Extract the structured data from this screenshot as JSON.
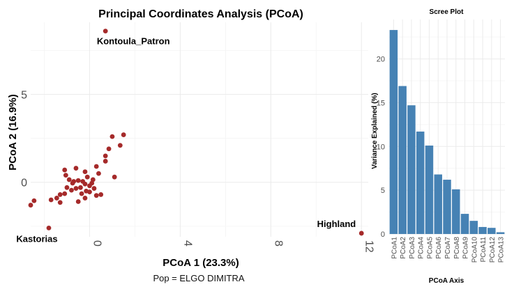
{
  "caption": "Pop = ELGO DIMITRA",
  "colors": {
    "point": "#A52A2A",
    "bar": "#4682B4",
    "grid": "#EBEBEB",
    "text": "#000000",
    "tick": "#4D4D4D"
  },
  "chart_data": [
    {
      "type": "scatter",
      "title": "Principal Coordinates Analysis (PCoA)",
      "xlabel": "PCoA 1 (23.3%)",
      "ylabel": "PCoA 2 (16.9%)",
      "xlim": [
        -2.6,
        12.3
      ],
      "ylim": [
        -3.1,
        9.1
      ],
      "xticks": [
        0,
        4,
        8,
        12
      ],
      "xtick_labels": [
        "0",
        "4",
        "8",
        "12"
      ],
      "yticks": [
        0,
        5
      ],
      "ytick_labels": [
        "0",
        "5"
      ],
      "points": [
        {
          "x": 0.7,
          "y": 8.6
        },
        {
          "x": 12.0,
          "y": -2.9
        },
        {
          "x": -1.8,
          "y": -2.6
        },
        {
          "x": 1.5,
          "y": 2.7
        },
        {
          "x": 1.0,
          "y": 2.6
        },
        {
          "x": 1.35,
          "y": 2.1
        },
        {
          "x": 0.85,
          "y": 1.9
        },
        {
          "x": 0.7,
          "y": 1.5
        },
        {
          "x": 0.7,
          "y": 1.2
        },
        {
          "x": 1.1,
          "y": 0.3
        },
        {
          "x": 0.3,
          "y": 0.9
        },
        {
          "x": 0.4,
          "y": 0.5
        },
        {
          "x": -0.2,
          "y": 0.6
        },
        {
          "x": -0.1,
          "y": 0.3
        },
        {
          "x": -0.6,
          "y": 0.8
        },
        {
          "x": -1.1,
          "y": 0.7
        },
        {
          "x": -1.05,
          "y": 0.4
        },
        {
          "x": -0.9,
          "y": 0.15
        },
        {
          "x": -0.7,
          "y": 0.05
        },
        {
          "x": -0.5,
          "y": 0.1
        },
        {
          "x": -0.3,
          "y": 0.05
        },
        {
          "x": -0.2,
          "y": -0.1
        },
        {
          "x": 0.0,
          "y": -0.2
        },
        {
          "x": 0.1,
          "y": -0.05
        },
        {
          "x": 0.2,
          "y": -0.35
        },
        {
          "x": -0.4,
          "y": -0.3
        },
        {
          "x": -0.6,
          "y": -0.35
        },
        {
          "x": -0.8,
          "y": -0.45
        },
        {
          "x": -1.0,
          "y": -0.3
        },
        {
          "x": -0.15,
          "y": -0.5
        },
        {
          "x": -0.35,
          "y": -0.65
        },
        {
          "x": 0.3,
          "y": -0.75
        },
        {
          "x": 0.5,
          "y": -0.7
        },
        {
          "x": -1.3,
          "y": -0.7
        },
        {
          "x": -1.1,
          "y": -0.65
        },
        {
          "x": -1.45,
          "y": -0.9
        },
        {
          "x": -1.7,
          "y": -1.0
        },
        {
          "x": -2.45,
          "y": -1.05
        },
        {
          "x": -2.6,
          "y": -1.3
        },
        {
          "x": -0.5,
          "y": -1.1
        },
        {
          "x": -0.2,
          "y": -0.9
        },
        {
          "x": -1.3,
          "y": -1.15
        },
        {
          "x": 0.0,
          "y": -0.55
        },
        {
          "x": -0.75,
          "y": -0.05
        },
        {
          "x": 0.15,
          "y": 0.15
        }
      ],
      "annotations": [
        {
          "label": "Kontoula_Patron",
          "x": 0.7,
          "y": 8.6,
          "position": "below"
        },
        {
          "label": "Highland",
          "x": 12.0,
          "y": -2.9,
          "position": "above-left"
        },
        {
          "label": "Kastorias",
          "x": -1.8,
          "y": -2.6,
          "position": "below"
        }
      ]
    },
    {
      "type": "bar",
      "title": "Scree Plot",
      "xlabel": "PCoA Axis",
      "ylabel": "Variance Explained (%)",
      "ylim": [
        0,
        24.5
      ],
      "yticks": [
        0,
        5,
        10,
        15,
        20
      ],
      "ytick_labels": [
        "0",
        "5",
        "10",
        "15",
        "20"
      ],
      "categories": [
        "PCoA1",
        "PCoA2",
        "PCoA3",
        "PCoA4",
        "PCoA5",
        "PCoA6",
        "PCoA7",
        "PCoA8",
        "PCoA9",
        "PCoA10",
        "PCoA11",
        "PCoA12",
        "PCoA13"
      ],
      "values": [
        23.3,
        16.9,
        14.7,
        11.7,
        10.1,
        6.8,
        6.2,
        5.1,
        2.3,
        1.5,
        0.8,
        0.7,
        0.2
      ]
    }
  ]
}
